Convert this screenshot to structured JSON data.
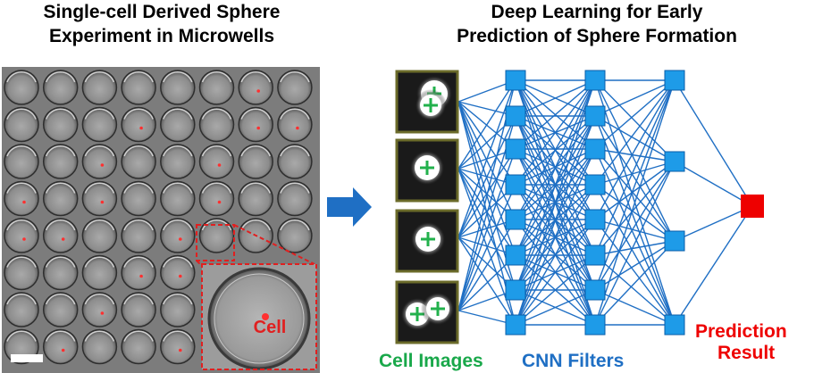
{
  "left_panel": {
    "title_line1": "Single-cell Derived Sphere",
    "title_line2": "Experiment in Microwells",
    "grid": {
      "rows": 8,
      "cols": 8
    },
    "inset_label": "Cell",
    "cell_dot_color": "#ff3030",
    "highlight_color": "#e02020"
  },
  "arrow_color": "#1f6fc4",
  "right_panel": {
    "title_line1": "Deep Learning for Early",
    "title_line2": "Prediction of Sphere Formation",
    "cell_images_label": "Cell Images",
    "cnn_filters_label": "CNN Filters",
    "prediction_label_line1": "Prediction",
    "prediction_label_line2": "Result",
    "network": {
      "layer_sizes": [
        4,
        8,
        8,
        4,
        1
      ]
    },
    "node_color": "#1e9be8",
    "edge_color": "#1f6fc4",
    "output_color": "#ee0000",
    "cell_images_color": "#19a84a",
    "cnn_label_color": "#1f6fc4",
    "prediction_label_color": "#ee0000"
  }
}
